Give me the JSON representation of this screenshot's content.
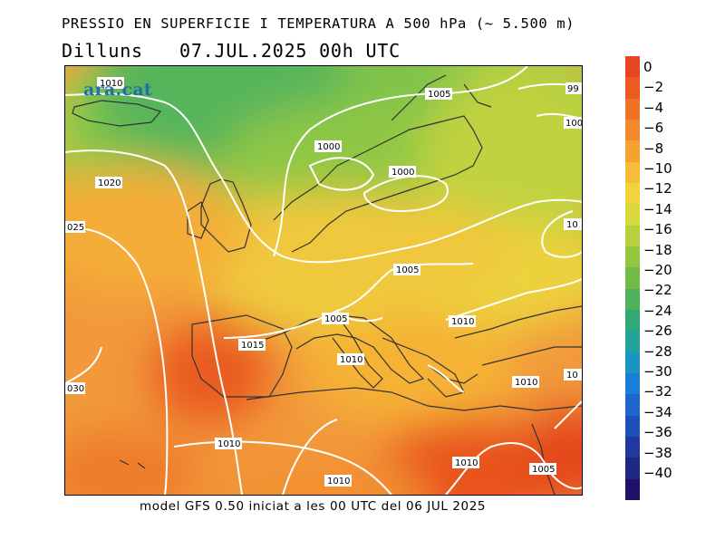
{
  "header": {
    "title": "PRESSIO EN SUPERFICIE I TEMPERATURA A 500 hPa (~ 5.500 m)",
    "day": "Dilluns",
    "datetime": "07.JUL.2025 00h UTC"
  },
  "logo": "ara.cat",
  "footer": "model GFS 0.50 iniciat a les 00 UTC del 06 JUL 2025",
  "colorbar": {
    "labels": [
      "0",
      "−2",
      "−4",
      "−6",
      "−8",
      "−10",
      "−12",
      "−14",
      "−16",
      "−18",
      "−20",
      "−22",
      "−24",
      "−26",
      "−28",
      "−30",
      "−32",
      "−34",
      "−36",
      "−38",
      "−40"
    ],
    "colors": [
      "#e6461e",
      "#eb5a21",
      "#ef7226",
      "#f2892d",
      "#f5a233",
      "#f7bd3a",
      "#f2d23e",
      "#d8d83f",
      "#b6d03f",
      "#94c63f",
      "#6fbd45",
      "#4fb25a",
      "#33a877",
      "#22a39a",
      "#1a94c4",
      "#1a7ed8",
      "#1c66cc",
      "#1f4fb8",
      "#21399f",
      "#202684",
      "#1f116a"
    ]
  },
  "isobars": [
    {
      "text": "1010"
    },
    {
      "text": "1005"
    },
    {
      "text": "1000"
    },
    {
      "text": "1000"
    },
    {
      "text": "1020"
    },
    {
      "text": "025"
    },
    {
      "text": "1005"
    },
    {
      "text": "1005"
    },
    {
      "text": "1010"
    },
    {
      "text": "1015"
    },
    {
      "text": "1010"
    },
    {
      "text": "1010"
    },
    {
      "text": "030"
    },
    {
      "text": "1010"
    },
    {
      "text": "1010"
    },
    {
      "text": "1010"
    },
    {
      "text": "1005"
    },
    {
      "text": "10"
    },
    {
      "text": "10"
    },
    {
      "text": "99"
    },
    {
      "text": "100"
    }
  ]
}
